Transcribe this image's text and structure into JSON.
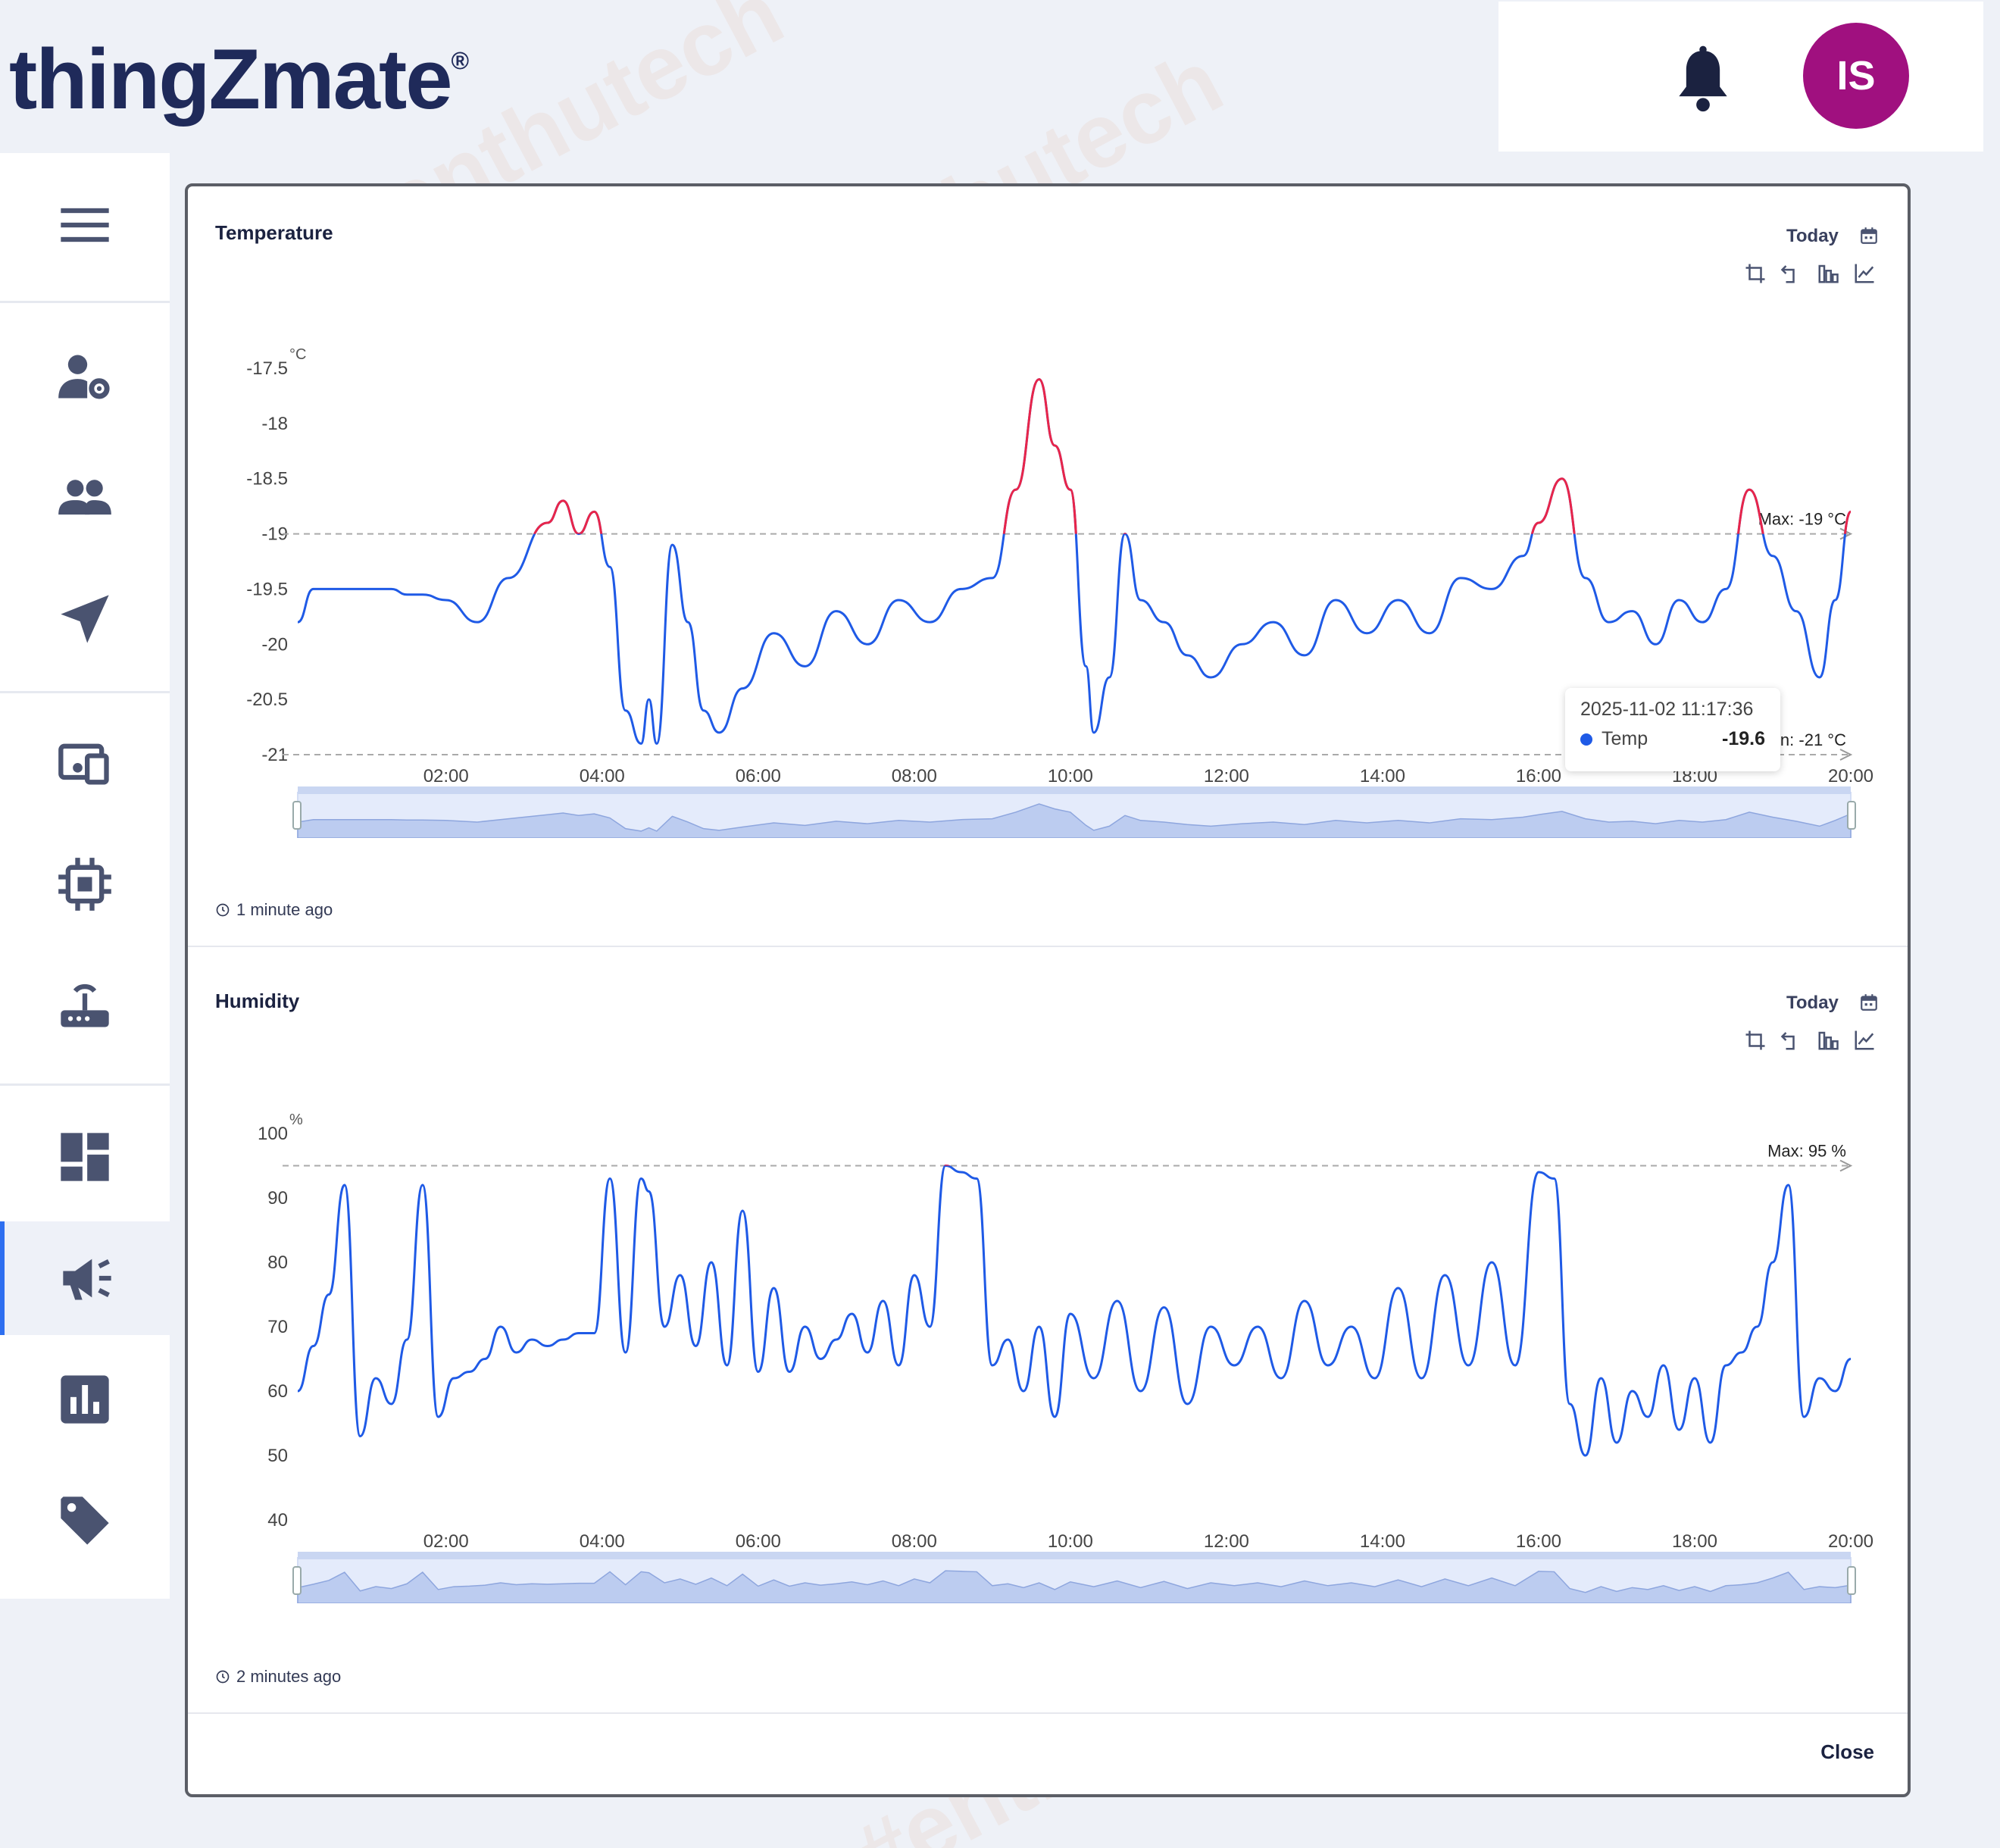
{
  "app": {
    "logo_text": "thingZmate",
    "logo_mark": "®",
    "avatar_initials": "IS",
    "avatar_color": "#a0107f"
  },
  "icons": {
    "notifications": "bell-icon",
    "menu": "hamburger-icon",
    "sidebar": [
      "user-settings-icon",
      "users-icon",
      "send-icon",
      "devices-icon",
      "chip-icon",
      "gateway-icon",
      "dashboard-icon",
      "campaign-icon",
      "analytics-icon",
      "tag-icon"
    ]
  },
  "accent_color": "#2e6ff0",
  "temperature": {
    "title": "Temperature",
    "range_label": "Today",
    "updated": "1 minute ago",
    "unit": "°C",
    "max_label": "Max:  -19 °C",
    "min_label": "Min:  -21 °C",
    "tooltip": {
      "time": "2025-11-02 11:17:36",
      "series": "Temp",
      "value": "-19.6"
    }
  },
  "humidity": {
    "title": "Humidity",
    "range_label": "Today",
    "updated": "2 minutes ago",
    "unit": "%",
    "max_label": "Max:  95 %"
  },
  "footer": {
    "close_label": "Close"
  },
  "chart_data": [
    {
      "type": "line",
      "title": "Temperature",
      "ylabel": "°C",
      "ylim": [
        -21,
        -17.5
      ],
      "yticks": [
        "-17.5",
        "-18",
        "-18.5",
        "-19",
        "-19.5",
        "-20",
        "-20.5",
        "-21"
      ],
      "xticks": [
        "02:00",
        "04:00",
        "06:00",
        "08:00",
        "10:00",
        "12:00",
        "14:00",
        "16:00",
        "18:00",
        "20:00"
      ],
      "xlim": [
        0.1,
        20.0
      ],
      "threshold_max": -19,
      "threshold_min": -21,
      "series": [
        {
          "name": "Temp",
          "color": "#1f5ae6",
          "above_max_color": "#e8254a",
          "x": [
            0.1,
            0.3,
            0.8,
            1.3,
            1.5,
            1.7,
            2.0,
            2.4,
            2.8,
            3.3,
            3.5,
            3.7,
            3.9,
            4.1,
            4.3,
            4.5,
            4.6,
            4.7,
            4.9,
            5.1,
            5.3,
            5.5,
            5.8,
            6.2,
            6.6,
            7.0,
            7.4,
            7.8,
            8.2,
            8.6,
            9.0,
            9.3,
            9.6,
            9.8,
            10.0,
            10.2,
            10.3,
            10.5,
            10.7,
            10.9,
            11.2,
            11.5,
            11.8,
            12.2,
            12.6,
            13.0,
            13.4,
            13.8,
            14.2,
            14.6,
            15.0,
            15.4,
            15.8,
            16.0,
            16.3,
            16.6,
            16.9,
            17.2,
            17.5,
            17.8,
            18.1,
            18.4,
            18.7,
            19.0,
            19.3,
            19.6,
            19.8,
            20.0
          ],
          "y": [
            -19.8,
            -19.5,
            -19.5,
            -19.5,
            -19.55,
            -19.55,
            -19.6,
            -19.8,
            -19.4,
            -18.9,
            -18.7,
            -19.0,
            -18.8,
            -19.3,
            -20.6,
            -20.9,
            -20.5,
            -20.9,
            -19.1,
            -19.8,
            -20.6,
            -20.8,
            -20.4,
            -19.9,
            -20.2,
            -19.7,
            -20.0,
            -19.6,
            -19.8,
            -19.5,
            -19.4,
            -18.6,
            -17.6,
            -18.2,
            -18.6,
            -20.2,
            -20.8,
            -20.3,
            -19.0,
            -19.6,
            -19.8,
            -20.1,
            -20.3,
            -20.0,
            -19.8,
            -20.1,
            -19.6,
            -19.9,
            -19.6,
            -19.9,
            -19.4,
            -19.5,
            -19.2,
            -18.9,
            -18.5,
            -19.4,
            -19.8,
            -19.7,
            -20.0,
            -19.6,
            -19.8,
            -19.5,
            -18.6,
            -19.2,
            -19.7,
            -20.3,
            -19.6,
            -18.8
          ]
        }
      ]
    },
    {
      "type": "line",
      "title": "Humidity",
      "ylabel": "%",
      "ylim": [
        40,
        100
      ],
      "yticks": [
        "100",
        "90",
        "80",
        "70",
        "60",
        "50",
        "40"
      ],
      "xticks": [
        "02:00",
        "04:00",
        "06:00",
        "08:00",
        "10:00",
        "12:00",
        "14:00",
        "16:00",
        "18:00",
        "20:00"
      ],
      "xlim": [
        0.1,
        20.0
      ],
      "threshold_max": 95,
      "series": [
        {
          "name": "Humidity",
          "color": "#1f5ae6",
          "above_max_color": "#e8254a",
          "x": [
            0.1,
            0.3,
            0.5,
            0.7,
            0.9,
            1.1,
            1.3,
            1.5,
            1.7,
            1.9,
            2.1,
            2.3,
            2.5,
            2.7,
            2.9,
            3.1,
            3.3,
            3.5,
            3.7,
            3.9,
            4.1,
            4.3,
            4.5,
            4.6,
            4.8,
            5.0,
            5.2,
            5.4,
            5.6,
            5.8,
            6.0,
            6.2,
            6.4,
            6.6,
            6.8,
            7.0,
            7.2,
            7.4,
            7.6,
            7.8,
            8.0,
            8.2,
            8.4,
            8.6,
            8.8,
            9.0,
            9.2,
            9.4,
            9.6,
            9.8,
            10.0,
            10.3,
            10.6,
            10.9,
            11.2,
            11.5,
            11.8,
            12.1,
            12.4,
            12.7,
            13.0,
            13.3,
            13.6,
            13.9,
            14.2,
            14.5,
            14.8,
            15.1,
            15.4,
            15.7,
            16.0,
            16.2,
            16.4,
            16.6,
            16.8,
            17.0,
            17.2,
            17.4,
            17.6,
            17.8,
            18.0,
            18.2,
            18.4,
            18.6,
            18.8,
            19.0,
            19.2,
            19.4,
            19.6,
            19.8,
            20.0
          ],
          "y": [
            60,
            67,
            75,
            92,
            53,
            62,
            58,
            68,
            92,
            56,
            62,
            63,
            65,
            70,
            66,
            68,
            67,
            68,
            69,
            69,
            93,
            66,
            93,
            91,
            70,
            78,
            67,
            80,
            64,
            88,
            63,
            76,
            63,
            70,
            65,
            68,
            72,
            66,
            74,
            64,
            78,
            70,
            95,
            94,
            93,
            64,
            68,
            60,
            70,
            56,
            72,
            62,
            74,
            60,
            73,
            58,
            70,
            64,
            70,
            62,
            74,
            64,
            70,
            62,
            76,
            62,
            78,
            64,
            80,
            64,
            94,
            93,
            58,
            50,
            62,
            52,
            60,
            56,
            64,
            54,
            62,
            52,
            64,
            66,
            70,
            80,
            92,
            56,
            62,
            60,
            65
          ]
        }
      ]
    }
  ]
}
